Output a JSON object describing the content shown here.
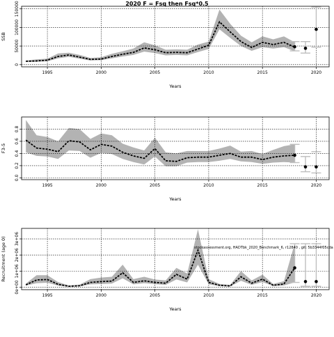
{
  "title": "2020 F = Fsq then Fsq*0.5",
  "watermark": "stockassessment.org, HADTbk_2020_Benchmark_6, r12840 , git: 5b3344f05cda",
  "colors": {
    "band": "#b3b3b3",
    "line": "#000000",
    "grid": "#000000",
    "bar": "#bebebe"
  },
  "chart_data": [
    {
      "type": "line",
      "name": "ssb-panel",
      "title": "2020 F = Fsq then Fsq*0.5",
      "xlabel": "Years",
      "ylabel": "SSB",
      "xlim": [
        1992.6,
        2021.2
      ],
      "ylim": [
        -6000,
        157000
      ],
      "xticks": [
        1995,
        2000,
        2005,
        2010,
        2015,
        2020
      ],
      "xtick_labels": [
        "1995",
        "2000",
        "2005",
        "2010",
        "2015",
        "2020"
      ],
      "yticks": [
        0,
        50000,
        100000,
        150000
      ],
      "ytick_labels": [
        "0",
        "50000",
        "100000",
        "150000"
      ],
      "grid": true,
      "years": [
        1993,
        1994,
        1995,
        1996,
        1997,
        1998,
        1999,
        2000,
        2001,
        2002,
        2003,
        2004,
        2005,
        2006,
        2007,
        2008,
        2009,
        2010,
        2011,
        2012,
        2013,
        2014,
        2015,
        2016,
        2017,
        2018
      ],
      "estimate": [
        9000,
        10000,
        12000,
        22000,
        26000,
        20000,
        14000,
        15000,
        22000,
        28000,
        33000,
        45000,
        40000,
        32000,
        33000,
        32000,
        42000,
        52000,
        115000,
        88000,
        62000,
        46000,
        60000,
        54000,
        60000,
        47000
      ],
      "lower": [
        7000,
        7500,
        9000,
        17000,
        21000,
        16000,
        11000,
        12000,
        17000,
        22000,
        26000,
        35000,
        31000,
        25000,
        26000,
        25000,
        34000,
        42000,
        95000,
        72000,
        50000,
        37000,
        47000,
        43000,
        47000,
        36000
      ],
      "upper": [
        11000,
        14000,
        16000,
        30000,
        32000,
        26000,
        18000,
        20000,
        29000,
        36000,
        43000,
        60000,
        52000,
        40000,
        41000,
        40000,
        54000,
        62000,
        148000,
        110000,
        78000,
        60000,
        76000,
        68000,
        76000,
        60000
      ],
      "forecast": [
        {
          "x": 2018,
          "y": 48000,
          "lo": 37000,
          "hi": 62000
        },
        {
          "x": 2019,
          "y": 44000,
          "lo": 31000,
          "hi": 62000
        },
        {
          "x": 2020,
          "y": 95000,
          "lo": 47000,
          "hi": 155000
        }
      ]
    },
    {
      "type": "line",
      "name": "f-panel",
      "xlabel": "Years",
      "ylabel": "F3-5",
      "xlim": [
        1992.6,
        2021.2
      ],
      "ylim": [
        -0.03,
        1.0
      ],
      "xticks": [
        1995,
        2000,
        2005,
        2010,
        2015,
        2020
      ],
      "xtick_labels": [
        "1995",
        "2000",
        "2005",
        "2010",
        "2015",
        "2020"
      ],
      "yticks": [
        0.0,
        0.2,
        0.4,
        0.6,
        0.8
      ],
      "ytick_labels": [
        "0.0",
        "0.2",
        "0.4",
        "0.6",
        "0.8"
      ],
      "grid": true,
      "years": [
        1993,
        1994,
        1995,
        1996,
        1997,
        1998,
        1999,
        2000,
        2001,
        2002,
        2003,
        2004,
        2005,
        2006,
        2007,
        2008,
        2009,
        2010,
        2011,
        2012,
        2013,
        2014,
        2015,
        2016,
        2017,
        2018
      ],
      "estimate": [
        0.62,
        0.49,
        0.47,
        0.43,
        0.61,
        0.59,
        0.46,
        0.55,
        0.52,
        0.42,
        0.36,
        0.32,
        0.48,
        0.28,
        0.27,
        0.33,
        0.34,
        0.34,
        0.37,
        0.4,
        0.34,
        0.34,
        0.3,
        0.34,
        0.36,
        0.37
      ],
      "lower": [
        0.42,
        0.36,
        0.35,
        0.31,
        0.45,
        0.44,
        0.33,
        0.41,
        0.39,
        0.31,
        0.26,
        0.22,
        0.35,
        0.19,
        0.19,
        0.25,
        0.26,
        0.26,
        0.28,
        0.31,
        0.27,
        0.26,
        0.23,
        0.25,
        0.26,
        0.25
      ],
      "upper": [
        0.95,
        0.7,
        0.67,
        0.6,
        0.82,
        0.8,
        0.64,
        0.73,
        0.7,
        0.56,
        0.5,
        0.45,
        0.66,
        0.42,
        0.4,
        0.44,
        0.44,
        0.44,
        0.48,
        0.53,
        0.43,
        0.44,
        0.39,
        0.46,
        0.52,
        0.55
      ],
      "forecast": [
        {
          "x": 2018,
          "y": 0.37,
          "lo": 0.25,
          "hi": 0.55
        },
        {
          "x": 2019,
          "y": 0.18,
          "lo": 0.1,
          "hi": 0.35
        },
        {
          "x": 2020,
          "y": 0.18,
          "lo": 0.08,
          "hi": 0.43
        }
      ]
    },
    {
      "type": "line",
      "name": "recruitment-panel",
      "xlabel": "Years",
      "ylabel": "Recruitment (age 0)",
      "xlim": [
        1992.6,
        2021.2
      ],
      "ylim": [
        -150000,
        3650000
      ],
      "xticks": [
        1995,
        2000,
        2005,
        2010,
        2015,
        2020
      ],
      "xtick_labels": [
        "1995",
        "2000",
        "2005",
        "2010",
        "2015",
        "2020"
      ],
      "yticks": [
        0,
        1000000,
        2000000,
        3000000
      ],
      "ytick_labels": [
        "0e+00",
        "1e+06",
        "2e+06",
        "3e+06"
      ],
      "grid": true,
      "years": [
        1993,
        1994,
        1995,
        1996,
        1997,
        1998,
        1999,
        2000,
        2001,
        2002,
        2003,
        2004,
        2005,
        2006,
        2007,
        2008,
        2009,
        2010,
        2011,
        2012,
        2013,
        2014,
        2015,
        2016,
        2017,
        2018
      ],
      "estimate": [
        150000,
        450000,
        480000,
        180000,
        60000,
        90000,
        300000,
        350000,
        380000,
        900000,
        300000,
        400000,
        300000,
        250000,
        800000,
        500000,
        2300000,
        300000,
        120000,
        80000,
        650000,
        250000,
        500000,
        120000,
        200000,
        1200000
      ],
      "lower": [
        100000,
        250000,
        280000,
        100000,
        30000,
        50000,
        180000,
        200000,
        230000,
        550000,
        180000,
        250000,
        190000,
        150000,
        480000,
        300000,
        1400000,
        180000,
        70000,
        45000,
        400000,
        150000,
        320000,
        70000,
        110000,
        300000
      ],
      "upper": [
        230000,
        750000,
        750000,
        320000,
        110000,
        160000,
        500000,
        600000,
        650000,
        1400000,
        500000,
        650000,
        480000,
        420000,
        1200000,
        850000,
        3600000,
        500000,
        210000,
        140000,
        1000000,
        420000,
        780000,
        200000,
        380000,
        2700000
      ],
      "forecast": [
        {
          "x": 2018,
          "y": 1200000,
          "lo": 300000,
          "hi": 2700000
        },
        {
          "x": 2019,
          "y": 350000,
          "lo": 60000,
          "hi": 2700000
        },
        {
          "x": 2020,
          "y": 350000,
          "lo": 60000,
          "hi": 2700000
        }
      ]
    }
  ]
}
